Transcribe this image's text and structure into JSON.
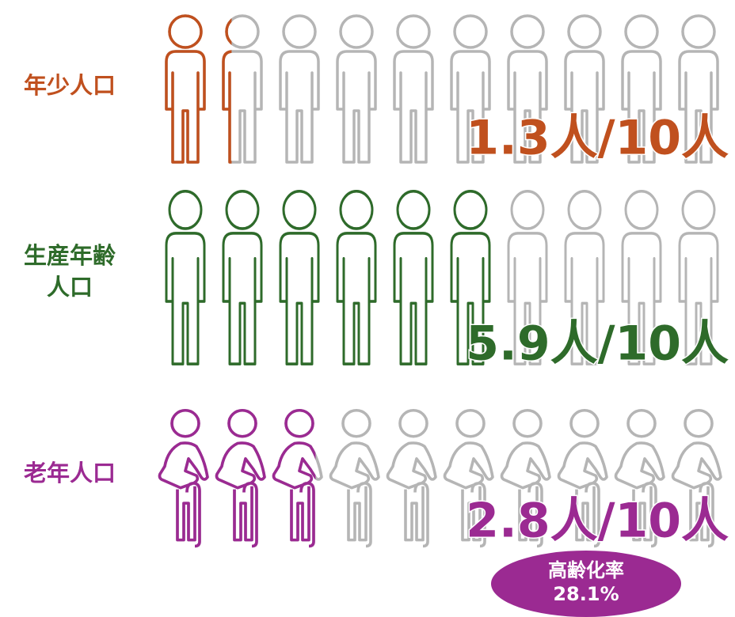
{
  "chart_data": {
    "type": "pictogram",
    "categories": [
      "年少人口",
      "生産年齢人口",
      "老年人口"
    ],
    "values": [
      1.3,
      5.9,
      2.8
    ],
    "value_labels": [
      "1.3人/10人",
      "5.9人/10人",
      "2.8人/10人"
    ],
    "colors": [
      "#c0501e",
      "#2e6b2a",
      "#9b2a92"
    ],
    "icon_count": 10,
    "annotation": {
      "title": "高齢化率",
      "text": "28.1%"
    }
  }
}
